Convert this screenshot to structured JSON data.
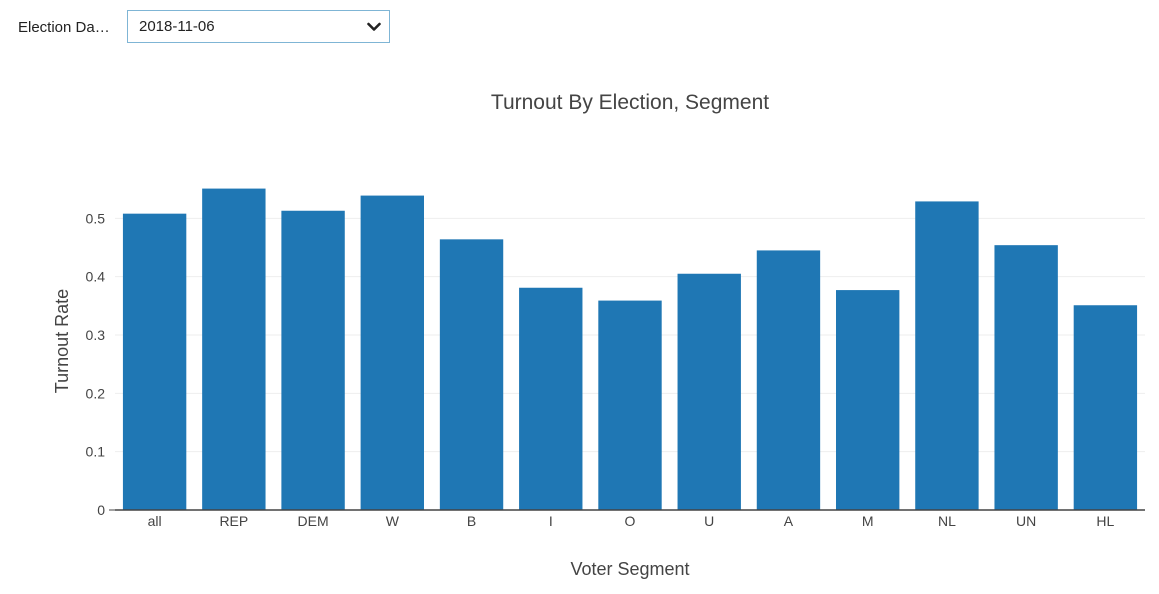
{
  "filter": {
    "label": "Election Da…",
    "selected_value": "2018-11-06"
  },
  "icons": {
    "dropdown": "chevron-down-icon"
  },
  "colors": {
    "bar": "#1f77b4",
    "grid": "#eeeeee",
    "axis": "#444444"
  },
  "chart_data": {
    "type": "bar",
    "title": "Turnout By Election, Segment",
    "xlabel": "Voter Segment",
    "ylabel": "Turnout Rate",
    "categories": [
      "all",
      "REP",
      "DEM",
      "W",
      "B",
      "I",
      "O",
      "U",
      "A",
      "M",
      "NL",
      "UN",
      "HL"
    ],
    "values": [
      0.508,
      0.551,
      0.513,
      0.539,
      0.464,
      0.381,
      0.359,
      0.405,
      0.445,
      0.377,
      0.529,
      0.454,
      0.351
    ],
    "yticks": [
      0,
      0.1,
      0.2,
      0.3,
      0.4,
      0.5
    ],
    "ytick_labels": [
      "0",
      "0.1",
      "0.2",
      "0.3",
      "0.4",
      "0.5"
    ],
    "ylim": [
      0,
      0.58
    ],
    "grid": true,
    "legend": "none"
  }
}
